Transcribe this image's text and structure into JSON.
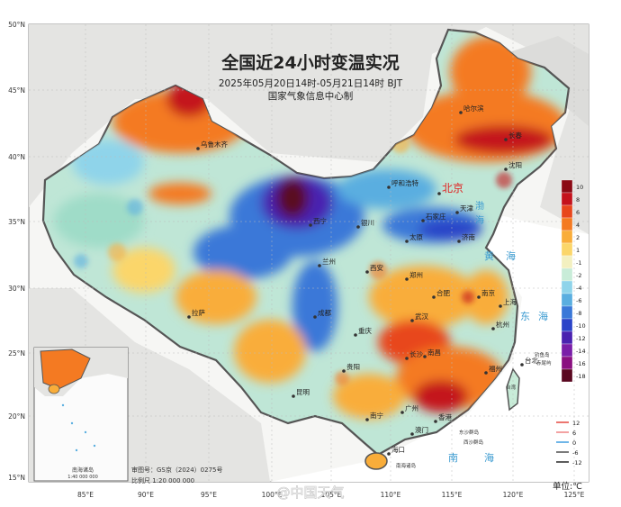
{
  "title": "全国近24小时变温实况",
  "subtitle": "2025年05月20日14时-05月21日14时 BJT",
  "producer": "国家气象信息中心制",
  "lat_labels": [
    "50°N",
    "45°N",
    "40°N",
    "35°N",
    "30°N",
    "25°N",
    "20°N",
    "15°N"
  ],
  "lon_labels": [
    "85°E",
    "90°E",
    "95°E",
    "100°E",
    "105°E",
    "110°E",
    "115°E",
    "120°E",
    "125°E"
  ],
  "legend": {
    "values": [
      "10",
      "8",
      "6",
      "4",
      "2",
      "1",
      "-1",
      "-2",
      "-4",
      "-6",
      "-8",
      "-10",
      "-12",
      "-14",
      "-16",
      "-18"
    ],
    "colors": [
      "#8b0a14",
      "#c4121c",
      "#e8461c",
      "#f47a22",
      "#f9ad3a",
      "#fbd66a",
      "#f3f0c0",
      "#c8ecd8",
      "#8fd4ea",
      "#5aaee0",
      "#3a78d8",
      "#2b44c8",
      "#4a22b0",
      "#7a1ea8",
      "#8a1080",
      "#5a0820"
    ]
  },
  "line_legend": [
    {
      "label": "12",
      "color": "#e8544c"
    },
    {
      "label": "6",
      "color": "#f08a8a"
    },
    {
      "label": "0",
      "color": "#4ba3e3"
    },
    {
      "label": "-6",
      "color": "#5a5a5a"
    },
    {
      "label": "-12",
      "color": "#333333"
    }
  ],
  "unit_label": "单位:℃",
  "map_approval": "审图号：GS京（2024）0275号",
  "scale": "比例尺  1:20 000 000",
  "inset_title": "南海诸岛",
  "inset_scale": "1:40 000 000",
  "watermark": "@中国天气",
  "cities": [
    {
      "name": "哈尔滨"
    },
    {
      "name": "长春"
    },
    {
      "name": "沈阳"
    },
    {
      "name": "乌鲁木齐"
    },
    {
      "name": "呼和浩特"
    },
    {
      "name": "北京"
    },
    {
      "name": "天津"
    },
    {
      "name": "石家庄"
    },
    {
      "name": "太原"
    },
    {
      "name": "济南"
    },
    {
      "name": "银川"
    },
    {
      "name": "西宁"
    },
    {
      "name": "兰州"
    },
    {
      "name": "西安"
    },
    {
      "name": "郑州"
    },
    {
      "name": "拉萨"
    },
    {
      "name": "成都"
    },
    {
      "name": "重庆"
    },
    {
      "name": "武汉"
    },
    {
      "name": "合肥"
    },
    {
      "name": "南京"
    },
    {
      "name": "上海"
    },
    {
      "name": "杭州"
    },
    {
      "name": "南昌"
    },
    {
      "name": "长沙"
    },
    {
      "name": "贵阳"
    },
    {
      "name": "福州"
    },
    {
      "name": "台北"
    },
    {
      "name": "昆明"
    },
    {
      "name": "南宁"
    },
    {
      "name": "广州"
    },
    {
      "name": "香港"
    },
    {
      "name": "澳门"
    },
    {
      "name": "海口"
    }
  ],
  "seas": [
    {
      "name": "渤"
    },
    {
      "name": "海"
    },
    {
      "name": "黄"
    },
    {
      "name": "海"
    },
    {
      "name": "东"
    },
    {
      "name": "海"
    },
    {
      "name": "南"
    },
    {
      "name": "海"
    }
  ],
  "islands": [
    {
      "name": "东沙群岛"
    },
    {
      "name": "西沙群岛"
    },
    {
      "name": "钓鱼岛"
    },
    {
      "name": "赤尾屿"
    },
    {
      "name": "台湾"
    },
    {
      "name": "南海诸岛"
    }
  ]
}
